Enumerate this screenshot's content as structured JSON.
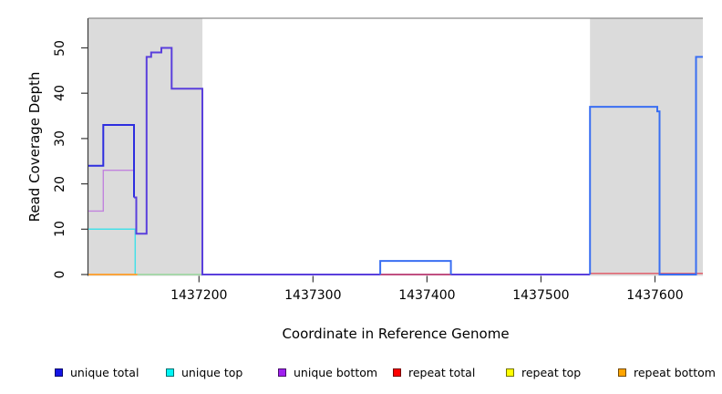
{
  "chart_data": {
    "type": "line",
    "subtype": "step-coverage",
    "title": "",
    "xlabel": "Coordinate in Reference Genome",
    "ylabel": "Read Coverage Depth",
    "x_ticks": [
      1437200,
      1437300,
      1437400,
      1437500,
      1437600
    ],
    "y_ticks": [
      0,
      10,
      20,
      30,
      40,
      50
    ],
    "xlim": [
      1437103,
      1437642
    ],
    "ylim": [
      0,
      56.5
    ],
    "grid": false,
    "legend_position": "bottom",
    "shaded_regions": [
      {
        "name": "repeat-region-left",
        "x0": 1437103,
        "x1": 1437203
      },
      {
        "name": "repeat-region-right",
        "x0": 1437543,
        "x1": 1437642
      }
    ],
    "series": [
      {
        "name": "unique total",
        "color": "#0000EE",
        "steps": [
          [
            1437103,
            24
          ],
          [
            1437116,
            33
          ],
          [
            1437143,
            17
          ],
          [
            1437145,
            9
          ],
          [
            1437154,
            48
          ],
          [
            1437158,
            49
          ],
          [
            1437167,
            50
          ],
          [
            1437176,
            41
          ],
          [
            1437203,
            0
          ],
          [
            1437359,
            3
          ],
          [
            1437421,
            0
          ],
          [
            1437543,
            37
          ],
          [
            1437602,
            36
          ],
          [
            1437604,
            0
          ],
          [
            1437636,
            48
          ],
          [
            1437642,
            48
          ]
        ]
      },
      {
        "name": "unique top",
        "color": "#00FFFF",
        "steps": [
          [
            1437103,
            10
          ],
          [
            1437144,
            0
          ],
          [
            1437642,
            0
          ]
        ]
      },
      {
        "name": "unique bottom",
        "color": "#A020F0",
        "steps": [
          [
            1437103,
            14
          ],
          [
            1437116,
            23
          ],
          [
            1437143,
            17
          ],
          [
            1437145,
            9
          ],
          [
            1437154,
            48
          ],
          [
            1437158,
            49
          ],
          [
            1437167,
            50
          ],
          [
            1437176,
            41
          ],
          [
            1437203,
            0
          ],
          [
            1437642,
            0
          ]
        ]
      },
      {
        "name": "repeat total",
        "color": "#FF0000",
        "steps": [
          [
            1437103,
            0
          ],
          [
            1437642,
            0
          ]
        ]
      },
      {
        "name": "repeat top",
        "color": "#FFFF00",
        "steps": [
          [
            1437103,
            0
          ],
          [
            1437642,
            0
          ]
        ]
      },
      {
        "name": "repeat bottom",
        "color": "#FFA500",
        "steps": [
          [
            1437103,
            0
          ],
          [
            1437642,
            0
          ]
        ]
      }
    ],
    "visual_segments": [
      {
        "name": "unique-top-line",
        "color": "#45E0E8",
        "width": 1.5,
        "points": [
          [
            1437103,
            10
          ],
          [
            1437144,
            10
          ],
          [
            1437144,
            0
          ]
        ]
      },
      {
        "name": "unique-bottom-line",
        "color": "#C183DD",
        "width": 1.4,
        "points": [
          [
            1437103,
            14
          ],
          [
            1437116,
            14
          ],
          [
            1437116,
            23
          ],
          [
            1437143,
            23
          ],
          [
            1437143,
            17
          ]
        ]
      },
      {
        "name": "unique-total-left",
        "color": "#2E2EDF",
        "width": 2,
        "points": [
          [
            1437103,
            24
          ],
          [
            1437116,
            24
          ],
          [
            1437116,
            33
          ],
          [
            1437143,
            33
          ],
          [
            1437143,
            17
          ]
        ]
      },
      {
        "name": "total-bottom-overlap-peak",
        "color": "#5A3FDC",
        "width": 2,
        "points": [
          [
            1437143,
            17
          ],
          [
            1437145,
            17
          ],
          [
            1437145,
            9
          ],
          [
            1437154,
            9
          ],
          [
            1437154,
            48
          ],
          [
            1437158,
            48
          ],
          [
            1437158,
            49
          ],
          [
            1437167,
            49
          ],
          [
            1437167,
            50
          ],
          [
            1437176,
            50
          ],
          [
            1437176,
            41
          ],
          [
            1437203,
            41
          ],
          [
            1437203,
            0
          ],
          [
            1437543,
            0
          ]
        ]
      },
      {
        "name": "repeat-bottom-baseline",
        "color": "#FF9D26",
        "width": 1.8,
        "points": [
          [
            1437103,
            0
          ],
          [
            1437146,
            0
          ]
        ]
      },
      {
        "name": "baseline-blend-green",
        "color": "#96D69B",
        "width": 1.5,
        "points": [
          [
            1437146,
            0
          ],
          [
            1437202,
            0
          ]
        ]
      },
      {
        "name": "repeat-total-mid",
        "color": "#E25563",
        "width": 1.4,
        "points": [
          [
            1437359,
            0
          ],
          [
            1437421,
            0
          ]
        ]
      },
      {
        "name": "repeat-total-right",
        "color": "#E25563",
        "width": 1.4,
        "dy": -1.2,
        "points": [
          [
            1437543,
            0
          ],
          [
            1437642,
            0
          ]
        ]
      },
      {
        "name": "unique-total-mid-bump",
        "color": "#3A6FF2",
        "width": 2,
        "points": [
          [
            1437359,
            0
          ],
          [
            1437359,
            3
          ],
          [
            1437421,
            3
          ],
          [
            1437421,
            0
          ]
        ]
      },
      {
        "name": "unique-total-right",
        "color": "#3A6FF2",
        "width": 2,
        "points": [
          [
            1437543,
            0
          ],
          [
            1437543,
            37
          ],
          [
            1437602,
            37
          ],
          [
            1437602,
            36
          ],
          [
            1437604,
            36
          ],
          [
            1437604,
            0
          ],
          [
            1437636,
            0
          ],
          [
            1437636,
            48
          ],
          [
            1437642,
            48
          ]
        ]
      }
    ]
  },
  "legend": {
    "items": [
      {
        "label": "unique total",
        "color": "#1414E6"
      },
      {
        "label": "unique top",
        "color": "#00F5F5"
      },
      {
        "label": "unique bottom",
        "color": "#A020F0"
      },
      {
        "label": "repeat total",
        "color": "#FF0000"
      },
      {
        "label": "repeat top",
        "color": "#FFFF00"
      },
      {
        "label": "repeat bottom",
        "color": "#FFA500"
      }
    ]
  },
  "colors": {
    "region_shade": "#DBDBDB",
    "frame": "#8A8A8A",
    "axis": "#3A3A3A",
    "background": "#FFFFFF"
  }
}
